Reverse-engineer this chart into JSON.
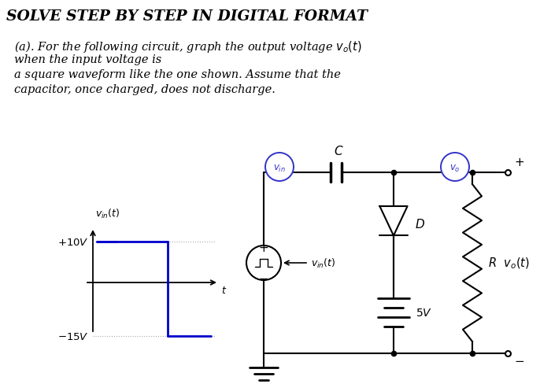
{
  "title": "SOLVE STEP BY STEP IN DIGITAL FORMAT",
  "para_line1": "(a). For the following circuit, graph the output voltage $v_o(t)$",
  "para_line2": "when the input voltage is",
  "para_line3": "a square waveform like the one shown. Assume that the",
  "para_line4": "capacitor, once charged, does not discharge.",
  "bg_color": "#ffffff",
  "title_color": "#000000",
  "body_color": "#000000",
  "circuit_color": "#000000",
  "vin_wave_color": "#0000cc",
  "blue_circle_color": "#3333cc",
  "title_fontsize": 13.5,
  "body_fontsize": 10.5
}
